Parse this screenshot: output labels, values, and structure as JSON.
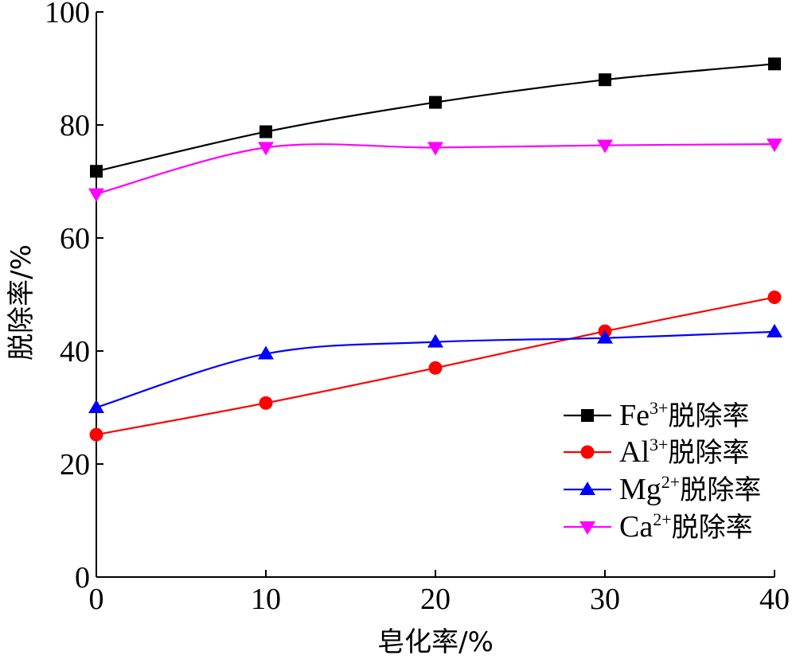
{
  "chart_data": {
    "type": "line",
    "xlabel": "皂化率/%",
    "ylabel": "脱除率/%",
    "xlim": [
      0,
      40
    ],
    "ylim": [
      0,
      100
    ],
    "x_ticks": [
      0,
      10,
      20,
      30,
      40
    ],
    "y_ticks": [
      0,
      20,
      40,
      60,
      80,
      100
    ],
    "grid": false,
    "legend_position": "bottom-right",
    "x": [
      0,
      10,
      20,
      30,
      40
    ],
    "series": [
      {
        "name": "Fe3+脱除率",
        "ion": "Fe",
        "charge": "3+",
        "suffix": "脱除率",
        "marker": "square",
        "color": "#000000",
        "values": [
          71.8,
          78.8,
          84.0,
          88.0,
          90.8
        ]
      },
      {
        "name": "Al3+脱除率",
        "ion": "Al",
        "charge": "3+",
        "suffix": "脱除率",
        "marker": "circle",
        "color": "#ff0000",
        "values": [
          25.2,
          30.8,
          37.0,
          43.5,
          49.5
        ]
      },
      {
        "name": "Mg2+脱除率",
        "ion": "Mg",
        "charge": "2+",
        "suffix": "脱除率",
        "marker": "triangle-up",
        "color": "#0000ff",
        "values": [
          30.0,
          39.5,
          41.6,
          42.3,
          43.4
        ]
      },
      {
        "name": "Ca2+脱除率",
        "ion": "Ca",
        "charge": "2+",
        "suffix": "脱除率",
        "marker": "triangle-down",
        "color": "#ff00ff",
        "values": [
          67.8,
          76.0,
          76.0,
          76.4,
          76.6
        ]
      }
    ]
  }
}
